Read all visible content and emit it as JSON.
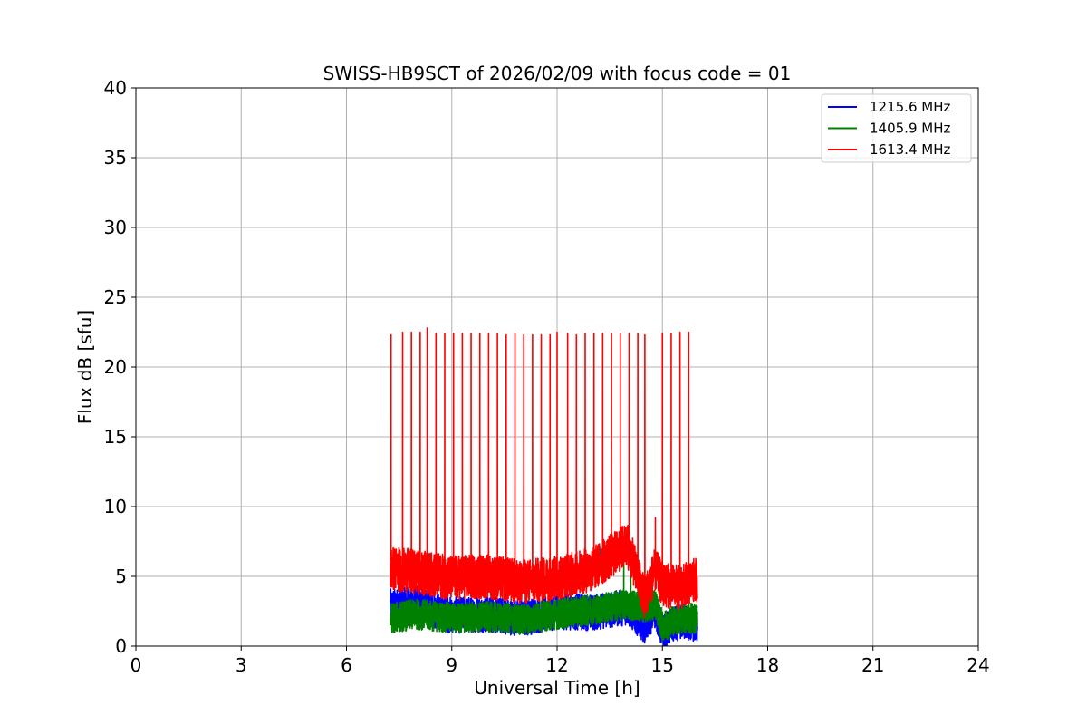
{
  "chart_data": {
    "type": "line",
    "title": "SWISS-HB9SCT of 2026/02/09 with focus code = 01",
    "xlabel": "Universal Time [h]",
    "ylabel": "Flux dB [sfu]",
    "xlim": [
      0,
      24
    ],
    "ylim": [
      0,
      40
    ],
    "xticks": [
      0,
      3,
      6,
      9,
      12,
      15,
      18,
      21,
      24
    ],
    "yticks": [
      0,
      5,
      10,
      15,
      20,
      25,
      30,
      35,
      40
    ],
    "grid": true,
    "legend_position": "top-right",
    "series": [
      {
        "name": "1215.6 MHz",
        "color": "#0000ff",
        "t_start": 7.25,
        "t_end": 16.0,
        "baseline": [
          [
            7.25,
            2.8
          ],
          [
            8.0,
            3.0
          ],
          [
            9.0,
            2.2
          ],
          [
            10.0,
            2.3
          ],
          [
            11.0,
            2.0
          ],
          [
            12.0,
            2.5
          ],
          [
            13.0,
            2.4
          ],
          [
            14.0,
            2.8
          ],
          [
            14.5,
            1.5
          ],
          [
            14.8,
            2.6
          ],
          [
            15.0,
            1.0
          ],
          [
            15.5,
            1.8
          ],
          [
            16.0,
            1.5
          ]
        ],
        "noise": 1.3,
        "spikes": []
      },
      {
        "name": "1405.9 MHz",
        "color": "#008000",
        "t_start": 7.25,
        "t_end": 16.0,
        "baseline": [
          [
            7.25,
            2.0
          ],
          [
            8.0,
            2.3
          ],
          [
            9.0,
            2.0
          ],
          [
            10.0,
            2.1
          ],
          [
            11.0,
            1.9
          ],
          [
            12.0,
            2.3
          ],
          [
            13.0,
            2.6
          ],
          [
            14.0,
            3.0
          ],
          [
            14.5,
            2.8
          ],
          [
            14.8,
            3.0
          ],
          [
            15.0,
            1.4
          ],
          [
            15.5,
            2.0
          ],
          [
            16.0,
            2.0
          ]
        ],
        "noise": 1.1,
        "spikes": [
          [
            13.9,
            6.3
          ],
          [
            14.1,
            5.0
          ],
          [
            14.3,
            4.7
          ]
        ]
      },
      {
        "name": "1613.4 MHz",
        "color": "#ff0000",
        "t_start": 7.25,
        "t_end": 16.0,
        "baseline": [
          [
            7.25,
            5.6
          ],
          [
            8.0,
            5.3
          ],
          [
            9.0,
            4.9
          ],
          [
            10.0,
            5.0
          ],
          [
            11.0,
            4.6
          ],
          [
            12.0,
            4.9
          ],
          [
            13.0,
            5.5
          ],
          [
            13.5,
            6.4
          ],
          [
            14.0,
            7.3
          ],
          [
            14.3,
            5.0
          ],
          [
            14.5,
            3.5
          ],
          [
            14.8,
            5.5
          ],
          [
            15.0,
            4.4
          ],
          [
            15.5,
            4.2
          ],
          [
            16.0,
            4.8
          ]
        ],
        "noise": 1.6,
        "spikes": [
          [
            7.27,
            22.3
          ],
          [
            7.6,
            22.5
          ],
          [
            7.85,
            22.5
          ],
          [
            8.1,
            22.5
          ],
          [
            8.3,
            22.8
          ],
          [
            8.55,
            22.4
          ],
          [
            8.8,
            22.4
          ],
          [
            9.05,
            22.4
          ],
          [
            9.3,
            22.4
          ],
          [
            9.55,
            22.4
          ],
          [
            9.8,
            22.4
          ],
          [
            10.05,
            22.4
          ],
          [
            10.3,
            22.4
          ],
          [
            10.55,
            22.3
          ],
          [
            10.8,
            22.4
          ],
          [
            11.05,
            22.3
          ],
          [
            11.3,
            22.3
          ],
          [
            11.55,
            22.3
          ],
          [
            11.8,
            22.3
          ],
          [
            12.0,
            22.5
          ],
          [
            12.3,
            22.4
          ],
          [
            12.55,
            22.3
          ],
          [
            12.8,
            22.4
          ],
          [
            13.05,
            22.4
          ],
          [
            13.3,
            22.4
          ],
          [
            13.55,
            22.4
          ],
          [
            13.8,
            22.4
          ],
          [
            14.05,
            22.4
          ],
          [
            14.3,
            22.4
          ],
          [
            14.5,
            22.3
          ],
          [
            14.8,
            9.2
          ],
          [
            15.0,
            22.4
          ],
          [
            15.25,
            22.4
          ],
          [
            15.5,
            22.5
          ],
          [
            15.75,
            22.5
          ]
        ]
      }
    ]
  }
}
